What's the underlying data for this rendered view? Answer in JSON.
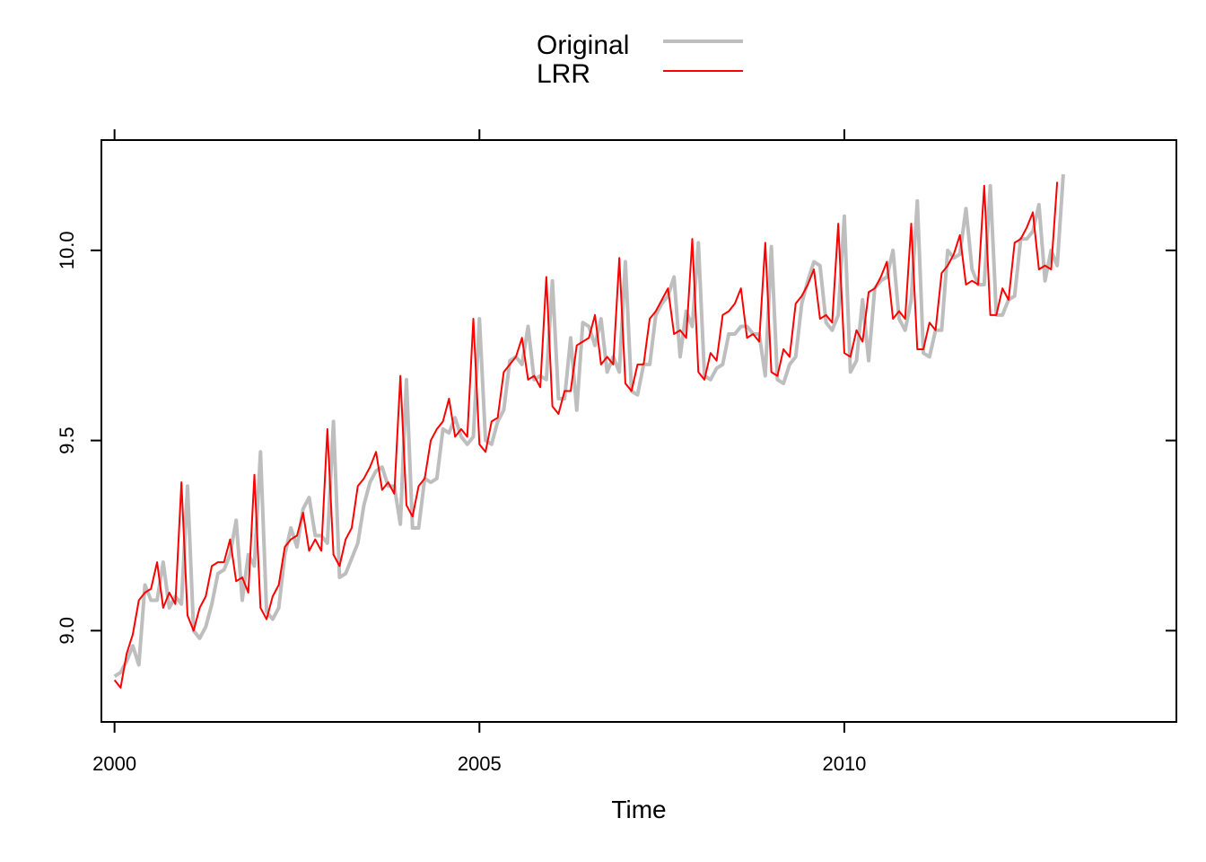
{
  "chart_data": {
    "type": "line",
    "title": "",
    "xlabel": "Time",
    "ylabel": "",
    "xlim": [
      1999.82,
      2014.55
    ],
    "ylim": [
      8.76,
      10.29
    ],
    "x_start": 2000.0,
    "x_step": 0.08333333,
    "x_ticks": [
      2000,
      2005,
      2010
    ],
    "y_ticks": [
      9.0,
      9.5,
      10.0
    ],
    "x_tick_labels": [
      "2000",
      "2005",
      "2010"
    ],
    "y_tick_labels": [
      "9.0",
      "9.5",
      "10.0"
    ],
    "axes_box": true,
    "top_axis_ticks": true,
    "right_axis_ticks": true,
    "grid": false,
    "legend_position": "top-center",
    "series": [
      {
        "name": "Original",
        "color": "#bebebe",
        "values": [
          8.88,
          8.89,
          8.92,
          8.96,
          8.91,
          9.12,
          9.08,
          9.08,
          9.18,
          9.06,
          9.09,
          9.07,
          9.38,
          9.0,
          8.98,
          9.01,
          9.07,
          9.15,
          9.16,
          9.2,
          9.29,
          9.08,
          9.2,
          9.17,
          9.47,
          9.05,
          9.03,
          9.06,
          9.2,
          9.27,
          9.22,
          9.32,
          9.35,
          9.25,
          9.25,
          9.23,
          9.55,
          9.14,
          9.15,
          9.19,
          9.23,
          9.33,
          9.39,
          9.42,
          9.43,
          9.38,
          9.38,
          9.28,
          9.66,
          9.27,
          9.27,
          9.4,
          9.39,
          9.4,
          9.53,
          9.52,
          9.56,
          9.51,
          9.49,
          9.51,
          9.82,
          9.5,
          9.49,
          9.55,
          9.58,
          9.71,
          9.72,
          9.7,
          9.8,
          9.66,
          9.67,
          9.66,
          9.92,
          9.61,
          9.61,
          9.77,
          9.58,
          9.81,
          9.8,
          9.75,
          9.82,
          9.68,
          9.72,
          9.68,
          9.97,
          9.63,
          9.62,
          9.7,
          9.7,
          9.83,
          9.86,
          9.88,
          9.93,
          9.72,
          9.84,
          9.8,
          10.02,
          9.67,
          9.66,
          9.69,
          9.7,
          9.78,
          9.78,
          9.8,
          9.8,
          9.78,
          9.78,
          9.67,
          10.01,
          9.66,
          9.65,
          9.7,
          9.72,
          9.86,
          9.92,
          9.97,
          9.96,
          9.81,
          9.79,
          9.83,
          10.09,
          9.68,
          9.71,
          9.87,
          9.71,
          9.9,
          9.92,
          9.93,
          10.0,
          9.82,
          9.79,
          9.87,
          10.13,
          9.73,
          9.72,
          9.79,
          9.79,
          10.0,
          9.98,
          9.99,
          10.11,
          9.95,
          9.91,
          9.91,
          10.17,
          9.83,
          9.83,
          9.87,
          9.88,
          10.03,
          10.03,
          10.05,
          10.12,
          9.92,
          10.0,
          9.96,
          10.2
        ]
      },
      {
        "name": "LRR",
        "color": "#ff0000",
        "values": [
          8.87,
          8.85,
          8.94,
          8.99,
          9.08,
          9.1,
          9.11,
          9.18,
          9.06,
          9.1,
          9.07,
          9.39,
          9.04,
          9.0,
          9.06,
          9.09,
          9.17,
          9.18,
          9.18,
          9.24,
          9.13,
          9.14,
          9.1,
          9.41,
          9.06,
          9.03,
          9.09,
          9.12,
          9.22,
          9.24,
          9.25,
          9.31,
          9.21,
          9.24,
          9.21,
          9.53,
          9.2,
          9.17,
          9.24,
          9.27,
          9.38,
          9.4,
          9.43,
          9.47,
          9.37,
          9.39,
          9.36,
          9.67,
          9.33,
          9.3,
          9.38,
          9.4,
          9.5,
          9.53,
          9.55,
          9.61,
          9.51,
          9.53,
          9.51,
          9.82,
          9.49,
          9.47,
          9.55,
          9.56,
          9.68,
          9.7,
          9.72,
          9.77,
          9.66,
          9.67,
          9.64,
          9.93,
          9.59,
          9.57,
          9.63,
          9.63,
          9.75,
          9.76,
          9.77,
          9.83,
          9.7,
          9.72,
          9.7,
          9.98,
          9.65,
          9.63,
          9.7,
          9.7,
          9.82,
          9.84,
          9.87,
          9.9,
          9.78,
          9.79,
          9.77,
          10.03,
          9.68,
          9.66,
          9.73,
          9.71,
          9.83,
          9.84,
          9.86,
          9.9,
          9.77,
          9.78,
          9.76,
          10.02,
          9.68,
          9.67,
          9.74,
          9.72,
          9.86,
          9.88,
          9.91,
          9.95,
          9.82,
          9.83,
          9.81,
          10.07,
          9.73,
          9.72,
          9.79,
          9.76,
          9.89,
          9.9,
          9.93,
          9.97,
          9.82,
          9.84,
          9.82,
          10.07,
          9.74,
          9.74,
          9.81,
          9.79,
          9.94,
          9.96,
          9.99,
          10.04,
          9.91,
          9.92,
          9.91,
          10.17,
          9.83,
          9.83,
          9.9,
          9.87,
          10.02,
          10.03,
          10.06,
          10.1,
          9.95,
          9.96,
          9.95,
          10.18
        ]
      }
    ]
  }
}
